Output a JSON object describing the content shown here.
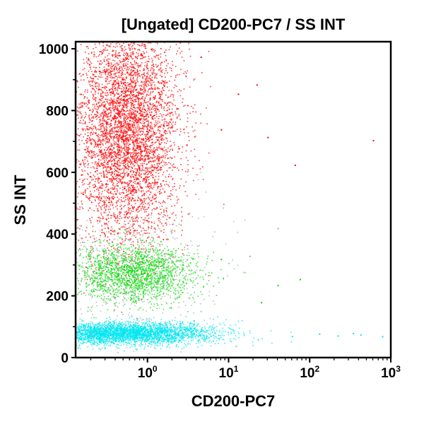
{
  "chart_data": {
    "type": "scatter",
    "title": "[Ungated] CD200-PC7 / SS INT",
    "xlabel": "CD200-PC7",
    "ylabel": "SS INT",
    "x_scale": "log",
    "xlim": [
      0.13,
      1000
    ],
    "ylim": [
      0,
      1023
    ],
    "x_ticks": [
      {
        "value": 1,
        "base": "10",
        "exp": "0"
      },
      {
        "value": 10,
        "base": "10",
        "exp": "1"
      },
      {
        "value": 100,
        "base": "10",
        "exp": "2"
      },
      {
        "value": 1000,
        "base": "10",
        "exp": "3"
      }
    ],
    "y_ticks": [
      {
        "value": 0,
        "label": "0"
      },
      {
        "value": 200,
        "label": "200"
      },
      {
        "value": 400,
        "label": "400"
      },
      {
        "value": 600,
        "label": "600"
      },
      {
        "value": 800,
        "label": "800"
      },
      {
        "value": 1000,
        "label": "1000"
      }
    ],
    "grid": false,
    "legend": "none",
    "populations": [
      {
        "color": "#ff0000",
        "x_center": 0.55,
        "y_center": 740,
        "x_spread_decades": 0.32,
        "y_spread": 180,
        "points": 5200
      },
      {
        "color": "#00dd00",
        "x_center": 0.65,
        "y_center": 275,
        "x_spread_decades": 0.38,
        "y_spread": 45,
        "points": 1800
      },
      {
        "color": "#00e5f0",
        "x_center": 0.5,
        "y_center": 80,
        "x_spread_decades": 0.55,
        "y_spread": 18,
        "points": 3400
      },
      {
        "color": "#a8a8a8",
        "x_center": 0.6,
        "y_center": 300,
        "x_spread_decades": 0.5,
        "y_spread": 120,
        "points": 700
      }
    ],
    "outliers": [
      {
        "x": 1.1,
        "y": 1000,
        "color": "#ff0000"
      },
      {
        "x": 4.5,
        "y": 975,
        "color": "#ff0000"
      },
      {
        "x": 13,
        "y": 855,
        "color": "#ff0000"
      },
      {
        "x": 22,
        "y": 885,
        "color": "#ff0000"
      },
      {
        "x": 30,
        "y": 715,
        "color": "#ff0000"
      },
      {
        "x": 600,
        "y": 705,
        "color": "#ff0000"
      },
      {
        "x": 65,
        "y": 625,
        "color": "#ff0000"
      },
      {
        "x": 8,
        "y": 740,
        "color": "#ff0000"
      },
      {
        "x": 3,
        "y": 690,
        "color": "#ff0000"
      },
      {
        "x": 75,
        "y": 255,
        "color": "#00dd00"
      },
      {
        "x": 40,
        "y": 235,
        "color": "#00dd00"
      },
      {
        "x": 25,
        "y": 180,
        "color": "#00dd00"
      },
      {
        "x": 8,
        "y": 320,
        "color": "#00dd00"
      },
      {
        "x": 60,
        "y": 70,
        "color": "#00e5f0"
      },
      {
        "x": 130,
        "y": 78,
        "color": "#00e5f0"
      },
      {
        "x": 220,
        "y": 72,
        "color": "#00e5f0"
      },
      {
        "x": 420,
        "y": 75,
        "color": "#00e5f0"
      },
      {
        "x": 780,
        "y": 70,
        "color": "#00e5f0"
      },
      {
        "x": 340,
        "y": 80,
        "color": "#00e5f0"
      },
      {
        "x": 40,
        "y": 420,
        "color": "#a8a8a8"
      },
      {
        "x": 18,
        "y": 330,
        "color": "#a8a8a8"
      }
    ]
  }
}
